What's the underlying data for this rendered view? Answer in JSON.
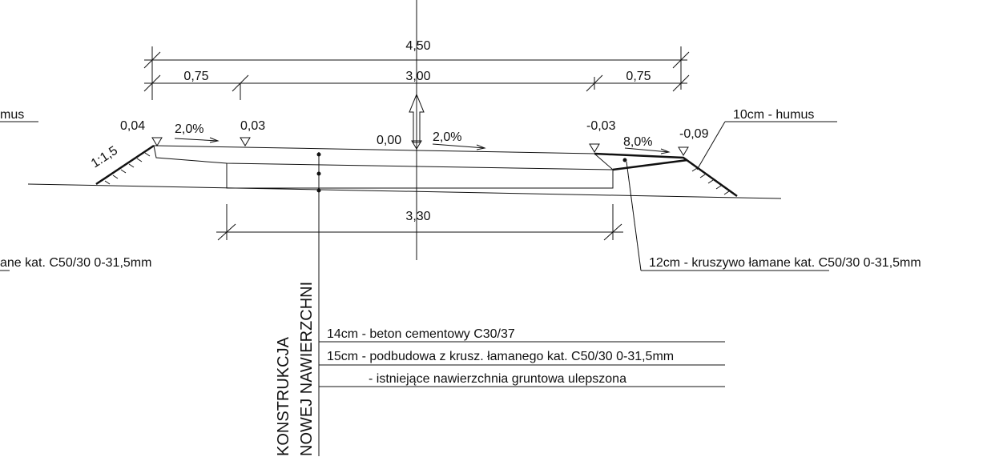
{
  "dimensions": {
    "total": "4,50",
    "left": "0,75",
    "middle": "3,00",
    "right": "0,75",
    "base": "3,30"
  },
  "elevations": [
    "0,04",
    "0,03",
    "0,00",
    "-0,03",
    "-0,09"
  ],
  "slopes": {
    "left": "2,0%",
    "right": "2,0%",
    "shoulder": "8,0%",
    "embankment": "1:1,5"
  },
  "labels": {
    "humus_left": "mus",
    "humus_right": "10cm - humus",
    "aggregate_left": "ane kat. C50/30 0-31,5mm",
    "aggregate_right": "12cm -  kruszywo łamane kat. C50/30 0-31,5mm"
  },
  "construction": {
    "title_line1": "KONSTRUKCJA",
    "title_line2": "NOWEJ NAWIERZCHNI",
    "layers": [
      "14cm - beton cementowy C30/37",
      "15cm - podbudowa z  krusz. łamanego kat. C50/30 0-31,5mm",
      "- istniejące nawierzchnia gruntowa ulepszona"
    ]
  }
}
